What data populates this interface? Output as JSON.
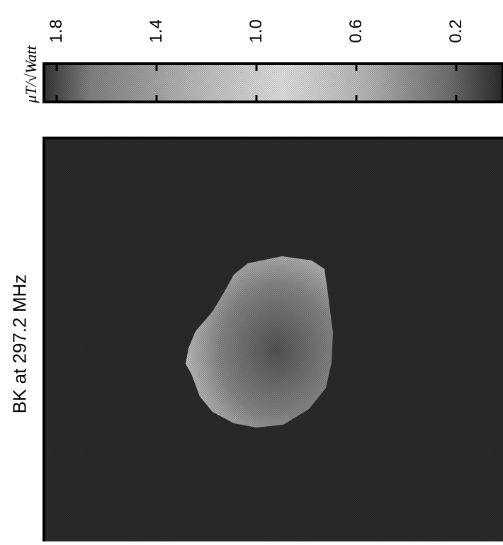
{
  "chart_data": [
    {
      "type": "heatmap",
      "title": "BK at 297.2 MHz",
      "colorbar": {
        "label": "μT/√Watt",
        "ticks": [
          1.8,
          1.4,
          1.0,
          0.6,
          0.2
        ],
        "tick_labels": [
          "1.8",
          "1.4",
          "1.0",
          "0.6",
          "0.2"
        ],
        "range": [
          0.0,
          2.0
        ],
        "orientation": "horizontal, rotated 90°"
      },
      "field_map": {
        "background_value": 0.0,
        "region": "single roughly circular blob near the middle of the map",
        "bright_edge_value": 1.1,
        "core_value": 0.4
      },
      "colormap": "grayscale with dot-halftone texture",
      "grid": false
    }
  ]
}
